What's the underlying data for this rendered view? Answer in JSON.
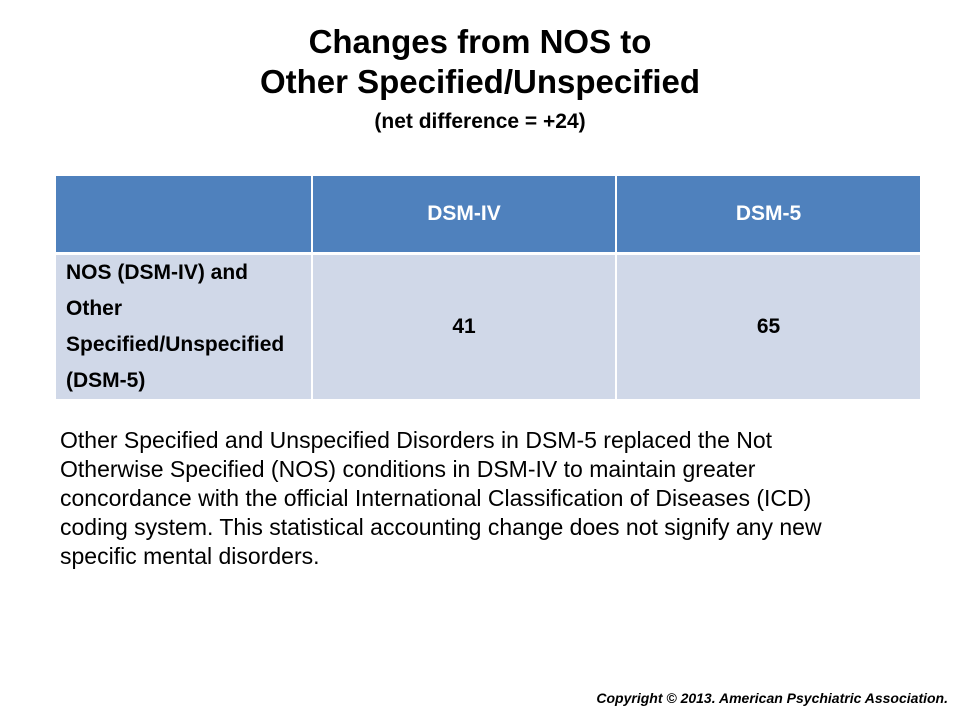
{
  "title": {
    "line1": "Changes from NOS to",
    "line2": "Other Specified/Unspecified",
    "subtitle": "(net difference = +24)"
  },
  "table": {
    "headers": [
      "",
      "DSM-IV",
      "DSM-5"
    ],
    "rows": [
      {
        "label": "NOS (DSM-IV) and Other Specified/Unspecified (DSM-5)",
        "dsm_iv": "41",
        "dsm_5": "65"
      }
    ]
  },
  "body_text": "Other Specified and Unspecified Disorders in DSM-5 replaced the Not Otherwise Specified (NOS) conditions in DSM-IV to maintain greater concordance  with the official International Classification of Diseases (ICD) coding system. This statistical accounting change does not signify any new specific mental disorders.",
  "copyright": "Copyright © 2013.  American Psychiatric Association.",
  "colors": {
    "header_fill": "#4f81bd",
    "row_fill": "#d0d8e8"
  }
}
